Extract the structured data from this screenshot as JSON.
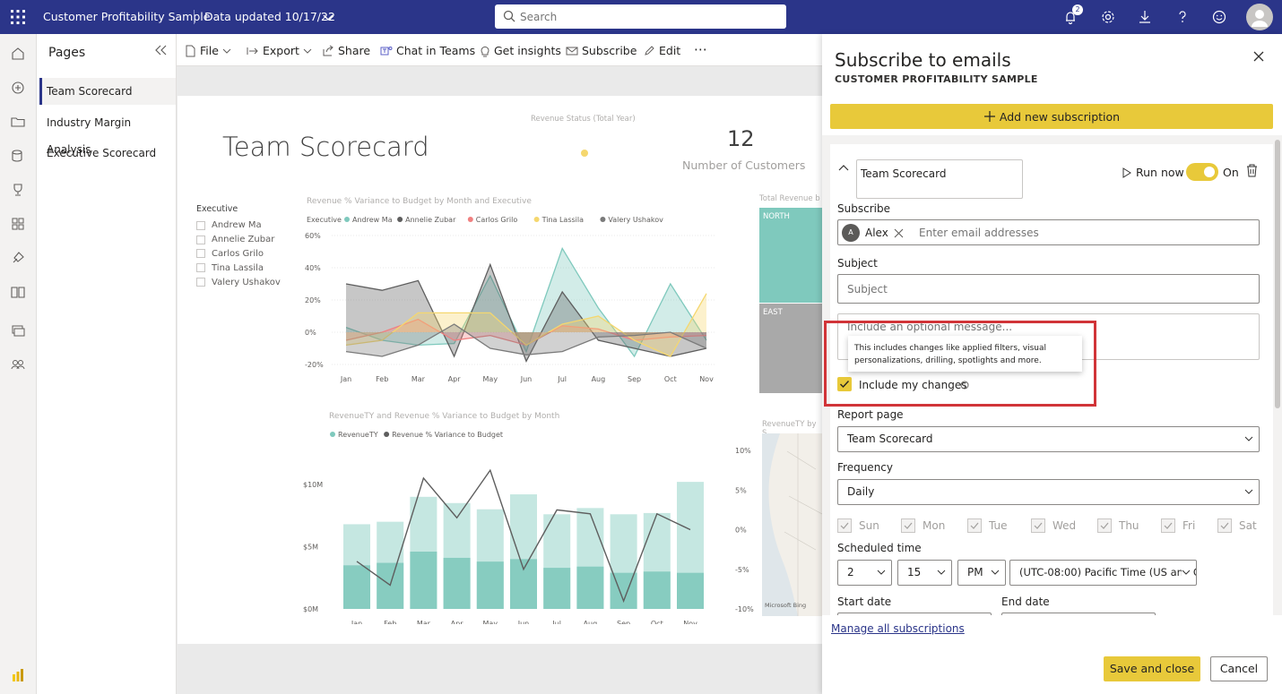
{
  "topbar": {
    "app_title": "Customer Profitability Sample",
    "data_updated": "Data updated 10/17/22",
    "search_placeholder": "Search",
    "notification_count": "2",
    "icons": [
      "waffle-icon",
      "bell-icon",
      "gear-icon",
      "download-icon",
      "help-icon",
      "smiley-icon",
      "profile-avatar"
    ]
  },
  "left_rail": {
    "icons": [
      "home-icon",
      "create-icon",
      "browse-icon",
      "datahub-icon",
      "goals-icon",
      "apps-icon",
      "deployment-icon",
      "learn-icon",
      "workspaces-icon",
      "people-icon",
      "powerbi-logo"
    ]
  },
  "pages_pane": {
    "header": "Pages",
    "items": [
      {
        "label": "Team Scorecard",
        "active": true
      },
      {
        "label": "Industry Margin Analysis",
        "active": false
      },
      {
        "label": "Executive Scorecard",
        "active": false
      }
    ]
  },
  "toolbar": {
    "file": "File",
    "export": "Export",
    "share": "Share",
    "chat": "Chat in Teams",
    "insights": "Get insights",
    "subscribe": "Subscribe",
    "edit": "Edit",
    "more": "⋯"
  },
  "report": {
    "title": "Team Scorecard",
    "revenue_status_title": "Revenue Status (Total Year)",
    "kpi_value": "12",
    "kpi_label": "Number of Customers",
    "executive_slicer": {
      "title": "Executive",
      "items": [
        "Andrew Ma",
        "Annelie Zubar",
        "Carlos Grilo",
        "Tina Lassila",
        "Valery Ushakov"
      ]
    },
    "treemap_title": "Total Revenue b",
    "treemap_regions": [
      "NORTH",
      "EAST"
    ],
    "map_title": "RevenueTY by S",
    "map_attribution": "Microsoft Bing"
  },
  "chart_data": [
    {
      "type": "area",
      "title": "Revenue % Variance to Budget by Month and Executive",
      "legend_title": "Executive",
      "categories": [
        "Jan",
        "Feb",
        "Mar",
        "Apr",
        "May",
        "Jun",
        "Jul",
        "Aug",
        "Sep",
        "Oct",
        "Nov"
      ],
      "y_ticks": [
        "60%",
        "40%",
        "20%",
        "0%",
        "-20%"
      ],
      "ylim": [
        -20,
        60
      ],
      "series": [
        {
          "name": "Andrew Ma",
          "color": "#7fc9bd",
          "values": [
            3,
            -5,
            -8,
            -7,
            35,
            -12,
            52,
            15,
            -15,
            30,
            -5
          ]
        },
        {
          "name": "Annelie Zubar",
          "color": "#5e5e5e",
          "values": [
            30,
            26,
            32,
            -15,
            42,
            -18,
            25,
            -5,
            -10,
            -15,
            -10
          ]
        },
        {
          "name": "Carlos Grilo",
          "color": "#f08080",
          "values": [
            -5,
            0,
            8,
            -5,
            -2,
            -8,
            4,
            2,
            -5,
            -3,
            -2
          ]
        },
        {
          "name": "Tina Lassila",
          "color": "#f5d76e",
          "values": [
            -8,
            -5,
            12,
            12,
            12,
            -8,
            5,
            10,
            -5,
            -15,
            24
          ]
        },
        {
          "name": "Valery Ushakov",
          "color": "#7a7a7a",
          "values": [
            -12,
            -15,
            -8,
            5,
            -10,
            -14,
            -12,
            -3,
            -2,
            0,
            -10
          ]
        }
      ]
    },
    {
      "type": "bar",
      "title": "RevenueTY and Revenue % Variance to Budget by Month",
      "categories": [
        "Jan",
        "Feb",
        "Mar",
        "Apr",
        "May",
        "Jun",
        "Jul",
        "Aug",
        "Sep",
        "Oct",
        "Nov"
      ],
      "y_left_ticks": [
        "$10M",
        "$5M",
        "$0M"
      ],
      "y_right_ticks": [
        "10%",
        "5%",
        "0%",
        "-5%",
        "-10%"
      ],
      "ylim": [
        0,
        11
      ],
      "y2lim": [
        -10,
        10
      ],
      "series": [
        {
          "name": "RevenueTY",
          "color": "#7fc9bd",
          "values": [
            6.8,
            7.0,
            9.0,
            8.5,
            8.0,
            9.2,
            7.6,
            8.1,
            7.6,
            7.7,
            10.2
          ]
        },
        {
          "name": "Revenue % Variance to Budget",
          "color": "#5e5e5e",
          "values": [
            -4,
            -7,
            6.5,
            1.5,
            7.5,
            -5,
            2.5,
            2,
            -9,
            2,
            0
          ]
        }
      ],
      "budget_values": [
        3.5,
        3.7,
        4.6,
        4.1,
        3.8,
        4.0,
        3.3,
        3.4,
        2.9,
        3.0,
        2.9
      ]
    }
  ],
  "subscribe_pane": {
    "title": "Subscribe to emails",
    "subtitle": "CUSTOMER PROFITABILITY SAMPLE",
    "add_new": "Add new subscription",
    "subscription_name": "Team Scorecard",
    "run_now": "Run now",
    "toggle_label": "On",
    "subscribe_label": "Subscribe",
    "recipient": {
      "initial": "A",
      "name": "Alex"
    },
    "email_placeholder": "Enter email addresses",
    "subject_label": "Subject",
    "subject_placeholder": "Subject",
    "message_placeholder": "Include an optional message...",
    "tooltip_text": "This includes changes like applied filters, visual personalizations, drilling, spotlights and more.",
    "include_changes": "Include my changes",
    "report_page_label": "Report page",
    "report_page_value": "Team Scorecard",
    "frequency_label": "Frequency",
    "frequency_value": "Daily",
    "days": [
      "Sun",
      "Mon",
      "Tue",
      "Wed",
      "Thu",
      "Fri",
      "Sat"
    ],
    "scheduled_time_label": "Scheduled time",
    "hour": "2",
    "minute": "15",
    "ampm": "PM",
    "timezone": "(UTC-08:00) Pacific Time (US and C",
    "start_date_label": "Start date",
    "end_date_label": "End date",
    "manage_link": "Manage all subscriptions",
    "save_close": "Save and close",
    "cancel": "Cancel",
    "accent_color": "#e8c93a",
    "highlight_color": "#d13438"
  }
}
